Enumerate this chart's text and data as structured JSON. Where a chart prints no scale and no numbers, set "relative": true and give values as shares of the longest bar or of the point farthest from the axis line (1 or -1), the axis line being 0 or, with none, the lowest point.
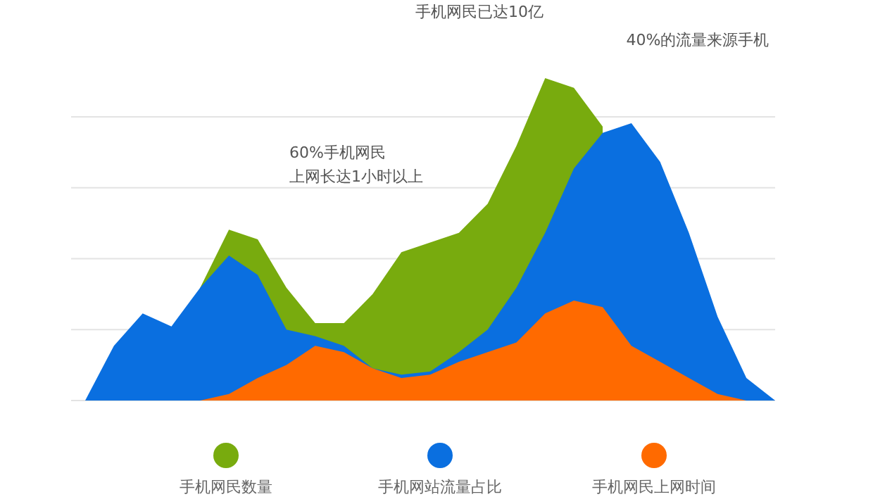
{
  "chart_data": {
    "type": "area",
    "relative": true,
    "grid": "y",
    "legend": "bottom",
    "categories": [
      null,
      null,
      null,
      null,
      null,
      null,
      null,
      null,
      null,
      null,
      null,
      null,
      null,
      null,
      null,
      null,
      null,
      null,
      null,
      null,
      null,
      null,
      null,
      null,
      null
    ],
    "series": [
      {
        "name": "手机网民数量",
        "color": "#78ab0e",
        "values": [
          null,
          null,
          null,
          0,
          0.35,
          0.53,
          0.5,
          0.35,
          0.24,
          0.24,
          0.33,
          0.46,
          0.49,
          0.52,
          0.61,
          0.79,
          1.0,
          0.97,
          0.85,
          null,
          null,
          null,
          null,
          null,
          null
        ]
      },
      {
        "name": "手机网站流量占比",
        "color": "#0a6fe0",
        "values": [
          0,
          0.17,
          0.27,
          0.23,
          0.35,
          0.45,
          0.39,
          0.22,
          0.2,
          0.17,
          0.1,
          0.08,
          0.09,
          0.15,
          0.22,
          0.35,
          0.52,
          0.72,
          0.83,
          0.86,
          0.74,
          0.52,
          0.26,
          0.07,
          0
        ]
      },
      {
        "name": "手机网民上网时间",
        "color": "#ff6a00",
        "values": [
          null,
          null,
          null,
          null,
          0,
          0.02,
          0.07,
          0.11,
          0.17,
          0.15,
          0.1,
          0.07,
          0.08,
          0.12,
          0.15,
          0.18,
          0.27,
          0.31,
          0.29,
          0.17,
          0.12,
          0.07,
          0.02,
          0,
          null
        ]
      }
    ],
    "annotations": [
      "手机网民已达10亿",
      "40%的流量来源手机",
      "60%手机网民",
      "上网长达1小时以上"
    ]
  }
}
